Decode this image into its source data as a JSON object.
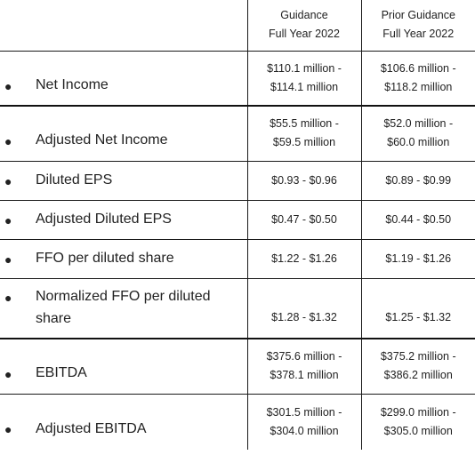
{
  "header": {
    "guidance_line1": "Guidance",
    "guidance_line2": "Full Year 2022",
    "prior_line1": "Prior Guidance",
    "prior_line2": "Full Year 2022"
  },
  "rows": [
    {
      "label": "Net Income",
      "guid_1": "$110.1 million -",
      "guid_2": "$114.1 million",
      "prior_1": "$106.6 million -",
      "prior_2": "$118.2 million"
    },
    {
      "label": "Adjusted Net Income",
      "guid_1": "$55.5 million -",
      "guid_2": "$59.5 million",
      "prior_1": "$52.0 million -",
      "prior_2": "$60.0 million"
    },
    {
      "label": "Diluted EPS",
      "guid_1": "$0.93 - $0.96",
      "prior_1": "$0.89 - $0.99"
    },
    {
      "label": "Adjusted Diluted EPS",
      "guid_1": "$0.47 - $0.50",
      "prior_1": "$0.44 - $0.50"
    },
    {
      "label": "FFO per diluted share",
      "guid_1": "$1.22 - $1.26",
      "prior_1": "$1.19 - $1.26"
    },
    {
      "label_1": "Normalized FFO per diluted",
      "label_2": "share",
      "guid_1": "$1.28 - $1.32",
      "prior_1": "$1.25 - $1.32"
    },
    {
      "label": "EBITDA",
      "guid_1": "$375.6 million -",
      "guid_2": "$378.1 million",
      "prior_1": "$375.2 million -",
      "prior_2": "$386.2 million"
    },
    {
      "label": "Adjusted EBITDA",
      "guid_1": "$301.5 million -",
      "guid_2": "$304.0 million",
      "prior_1": "$299.0 million -",
      "prior_2": "$305.0 million"
    }
  ]
}
